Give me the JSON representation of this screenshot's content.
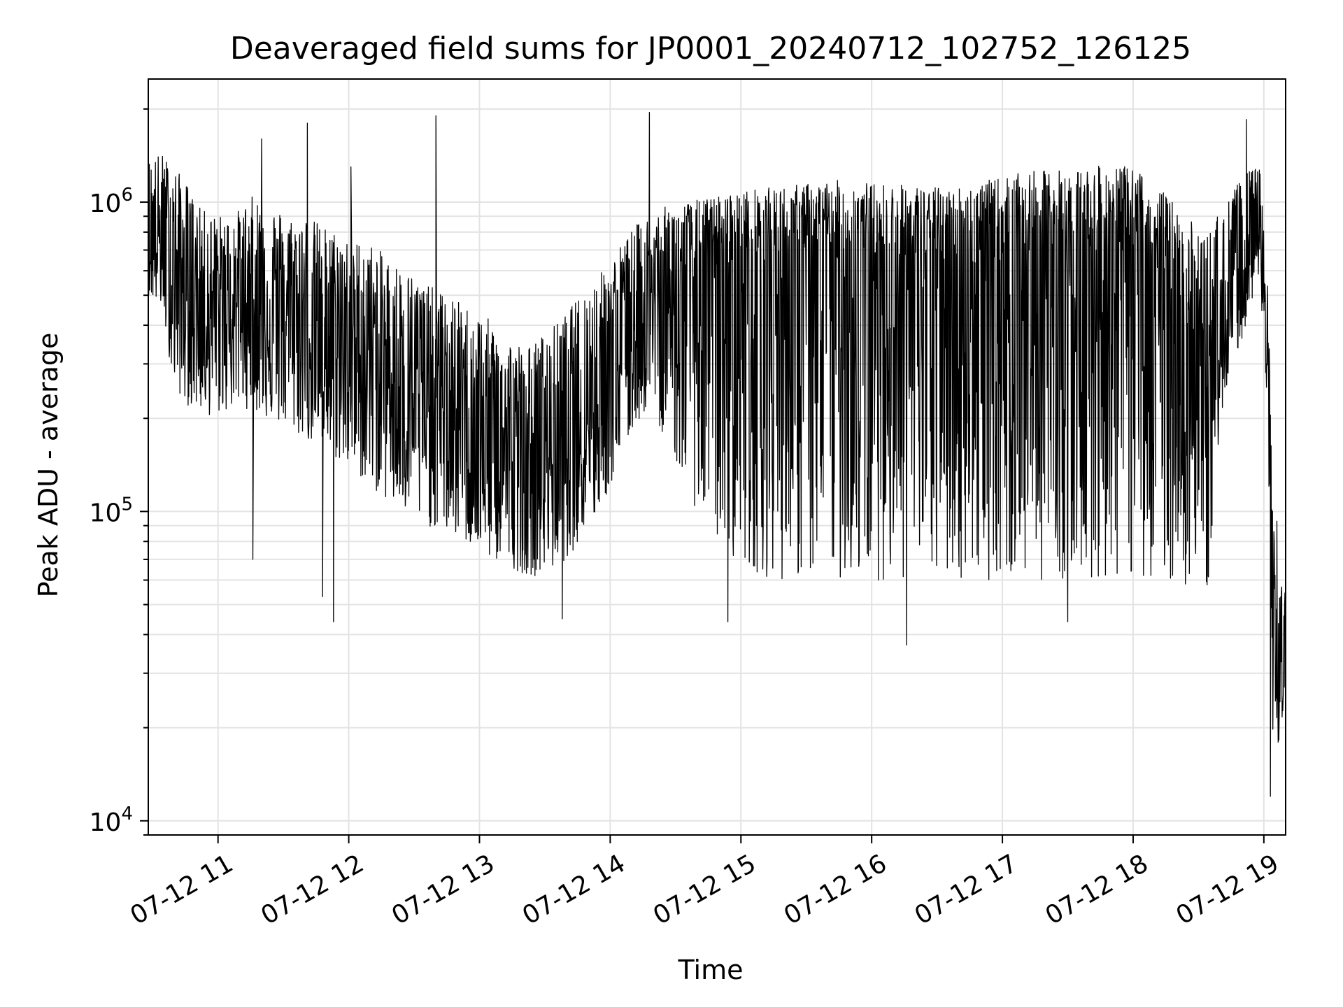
{
  "chart_data": {
    "type": "line",
    "title": "Deaveraged field sums for JP0001_20240712_102752_126125",
    "xlabel": "Time",
    "ylabel": "Peak ADU - average",
    "yscale": "log",
    "ylim": [
      9000,
      2500000
    ],
    "xlim": [
      "2024-07-12 10:28",
      "2024-07-12 19:10"
    ],
    "x_ticks": [
      {
        "value": "2024-07-12 11:00",
        "label": "07-12 11"
      },
      {
        "value": "2024-07-12 12:00",
        "label": "07-12 12"
      },
      {
        "value": "2024-07-12 13:00",
        "label": "07-12 13"
      },
      {
        "value": "2024-07-12 14:00",
        "label": "07-12 14"
      },
      {
        "value": "2024-07-12 15:00",
        "label": "07-12 15"
      },
      {
        "value": "2024-07-12 16:00",
        "label": "07-12 16"
      },
      {
        "value": "2024-07-12 17:00",
        "label": "07-12 17"
      },
      {
        "value": "2024-07-12 18:00",
        "label": "07-12 18"
      },
      {
        "value": "2024-07-12 19:00",
        "label": "07-12 19"
      }
    ],
    "y_ticks": [
      {
        "value": 10000,
        "base": "10",
        "exp": "4"
      },
      {
        "value": 100000,
        "base": "10",
        "exp": "5"
      },
      {
        "value": 1000000,
        "base": "10",
        "exp": "6"
      }
    ],
    "grid": true,
    "line_color": "#000000",
    "series": [
      {
        "x": [
          "2024-07-12 10:28",
          "2024-07-12 10:34",
          "2024-07-12 10:40",
          "2024-07-12 10:46",
          "2024-07-12 10:52",
          "2024-07-12 10:58",
          "2024-07-12 11:04",
          "2024-07-12 11:10",
          "2024-07-12 11:16",
          "2024-07-12 11:22",
          "2024-07-12 11:28",
          "2024-07-12 11:34",
          "2024-07-12 11:40",
          "2024-07-12 11:46",
          "2024-07-12 11:52",
          "2024-07-12 11:58",
          "2024-07-12 12:04",
          "2024-07-12 12:10",
          "2024-07-12 12:16",
          "2024-07-12 12:22",
          "2024-07-12 12:28",
          "2024-07-12 12:34",
          "2024-07-12 12:40",
          "2024-07-12 12:46",
          "2024-07-12 12:52",
          "2024-07-12 12:58",
          "2024-07-12 13:04",
          "2024-07-12 13:10",
          "2024-07-12 13:16",
          "2024-07-12 13:22",
          "2024-07-12 13:28",
          "2024-07-12 13:34",
          "2024-07-12 13:40",
          "2024-07-12 13:46",
          "2024-07-12 13:52",
          "2024-07-12 13:58",
          "2024-07-12 14:04",
          "2024-07-12 14:10",
          "2024-07-12 14:16",
          "2024-07-12 14:22",
          "2024-07-12 14:28",
          "2024-07-12 14:34",
          "2024-07-12 14:40",
          "2024-07-12 14:46",
          "2024-07-12 14:52",
          "2024-07-12 14:58",
          "2024-07-12 15:04",
          "2024-07-12 15:10",
          "2024-07-12 15:16",
          "2024-07-12 15:22",
          "2024-07-12 15:28",
          "2024-07-12 15:34",
          "2024-07-12 15:40",
          "2024-07-12 15:46",
          "2024-07-12 15:52",
          "2024-07-12 15:58",
          "2024-07-12 16:04",
          "2024-07-12 16:10",
          "2024-07-12 16:16",
          "2024-07-12 16:22",
          "2024-07-12 16:28",
          "2024-07-12 16:34",
          "2024-07-12 16:40",
          "2024-07-12 16:46",
          "2024-07-12 16:52",
          "2024-07-12 16:58",
          "2024-07-12 17:04",
          "2024-07-12 17:10",
          "2024-07-12 17:16",
          "2024-07-12 17:22",
          "2024-07-12 17:28",
          "2024-07-12 17:34",
          "2024-07-12 17:40",
          "2024-07-12 17:46",
          "2024-07-12 17:52",
          "2024-07-12 17:58",
          "2024-07-12 18:04",
          "2024-07-12 18:10",
          "2024-07-12 18:16",
          "2024-07-12 18:22",
          "2024-07-12 18:28",
          "2024-07-12 18:34",
          "2024-07-12 18:40",
          "2024-07-12 18:46",
          "2024-07-12 18:52",
          "2024-07-12 18:58",
          "2024-07-12 19:00",
          "2024-07-12 19:02",
          "2024-07-12 19:04",
          "2024-07-12 19:06",
          "2024-07-12 19:08",
          "2024-07-12 19:10"
        ],
        "mid": [
          700000,
          750000,
          600000,
          500000,
          480000,
          450000,
          470000,
          480000,
          500000,
          460000,
          450000,
          420000,
          400000,
          380000,
          360000,
          340000,
          330000,
          310000,
          290000,
          270000,
          250000,
          230000,
          220000,
          200000,
          190000,
          175000,
          165000,
          160000,
          150000,
          145000,
          150000,
          165000,
          185000,
          210000,
          240000,
          280000,
          330000,
          390000,
          440000,
          480000,
          510000,
          540000,
          560000,
          580000,
          600000,
          620000,
          630000,
          640000,
          650000,
          650000,
          660000,
          660000,
          660000,
          650000,
          650000,
          650000,
          640000,
          640000,
          630000,
          630000,
          620000,
          620000,
          620000,
          630000,
          630000,
          640000,
          650000,
          650000,
          660000,
          670000,
          680000,
          680000,
          690000,
          690000,
          690000,
          690000,
          640000,
          560000,
          470000,
          380000,
          300000,
          260000,
          330000,
          480000,
          660000,
          820000,
          480000,
          250000,
          60000,
          25000,
          30000,
          38000
        ],
        "high": [
          1400000,
          1450000,
          1300000,
          1150000,
          950000,
          920000,
          900000,
          950000,
          1050000,
          1000000,
          950000,
          900000,
          920000,
          860000,
          820000,
          800000,
          760000,
          740000,
          680000,
          640000,
          600000,
          560000,
          520000,
          500000,
          470000,
          450000,
          420000,
          380000,
          360000,
          340000,
          370000,
          400000,
          440000,
          500000,
          560000,
          620000,
          720000,
          820000,
          900000,
          950000,
          980000,
          1000000,
          1020000,
          1040000,
          1060000,
          1080000,
          1100000,
          1110000,
          1120000,
          1130000,
          1150000,
          1160000,
          1170000,
          1180000,
          1170000,
          1160000,
          1150000,
          1150000,
          1140000,
          1130000,
          1120000,
          1120000,
          1130000,
          1150000,
          1170000,
          1200000,
          1220000,
          1250000,
          1260000,
          1270000,
          1280000,
          1290000,
          1300000,
          1310000,
          1310000,
          1300000,
          1250000,
          1150000,
          1050000,
          950000,
          850000,
          800000,
          950000,
          1100000,
          1250000,
          1300000,
          900000,
          500000,
          120000,
          45000,
          60000,
          70000
        ],
        "low": [
          500000,
          450000,
          250000,
          220000,
          210000,
          200000,
          210000,
          220000,
          210000,
          200000,
          190000,
          180000,
          170000,
          160000,
          150000,
          140000,
          130000,
          120000,
          110000,
          100000,
          95000,
          90000,
          88000,
          85000,
          80000,
          75000,
          70000,
          68000,
          65000,
          62000,
          62000,
          65000,
          70000,
          80000,
          90000,
          110000,
          140000,
          180000,
          210000,
          190000,
          160000,
          120000,
          100000,
          85000,
          75000,
          70000,
          65000,
          62000,
          60000,
          60000,
          60000,
          60000,
          60000,
          60000,
          60000,
          60000,
          60000,
          60000,
          60000,
          60000,
          60000,
          60000,
          60000,
          60000,
          60000,
          60000,
          60000,
          60000,
          60000,
          60000,
          60000,
          60000,
          60000,
          60000,
          60000,
          60000,
          60000,
          62000,
          60000,
          58000,
          55000,
          52000,
          200000,
          300000,
          400000,
          600000,
          300000,
          120000,
          20000,
          15000,
          20000,
          28000
        ],
        "spikes": [
          {
            "x": "2024-07-12 11:20",
            "y": 1600000
          },
          {
            "x": "2024-07-12 11:41",
            "y": 1800000
          },
          {
            "x": "2024-07-12 12:01",
            "y": 1300000
          },
          {
            "x": "2024-07-12 12:40",
            "y": 1900000
          },
          {
            "x": "2024-07-12 14:18",
            "y": 1950000
          },
          {
            "x": "2024-07-12 18:52",
            "y": 1850000
          },
          {
            "x": "2024-07-12 11:16",
            "y": 70000
          },
          {
            "x": "2024-07-12 11:48",
            "y": 53000
          },
          {
            "x": "2024-07-12 11:53",
            "y": 44000
          },
          {
            "x": "2024-07-12 13:38",
            "y": 45000
          },
          {
            "x": "2024-07-12 14:54",
            "y": 44000
          },
          {
            "x": "2024-07-12 16:16",
            "y": 37000
          },
          {
            "x": "2024-07-12 17:30",
            "y": 44000
          },
          {
            "x": "2024-07-12 19:03",
            "y": 12000
          },
          {
            "x": "2024-07-12 19:06",
            "y": 93000
          }
        ]
      }
    ]
  }
}
